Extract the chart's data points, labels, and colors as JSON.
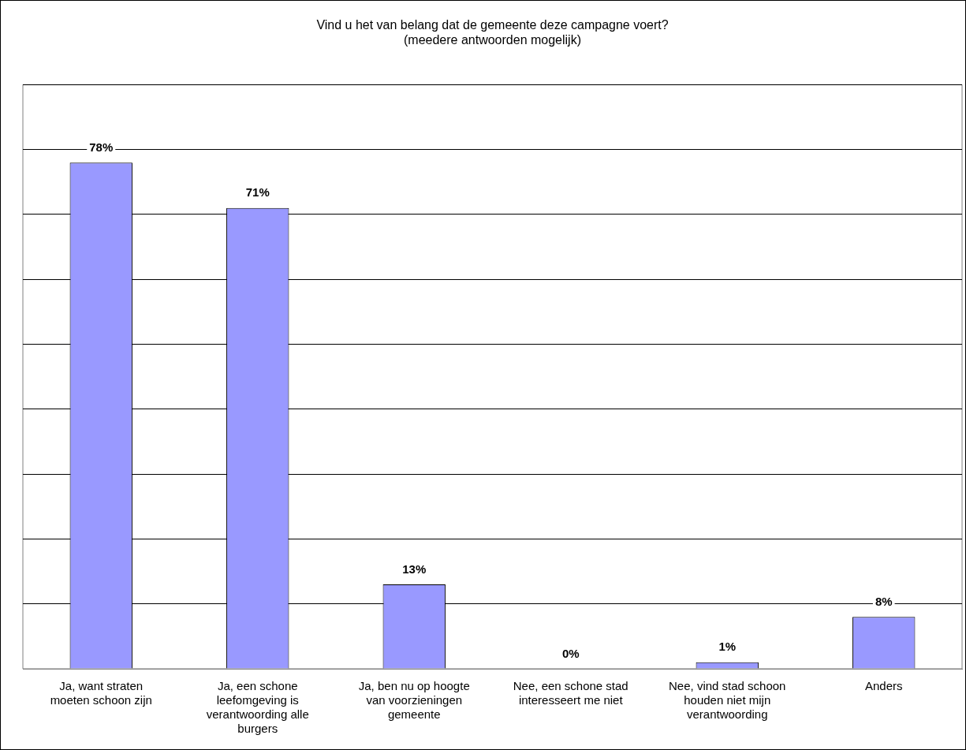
{
  "chart_data": {
    "type": "bar",
    "title": "Vind u het van belang dat de gemeente deze campagne voert?",
    "subtitle": "(meedere antwoorden mogelijk)",
    "categories": [
      "Ja, want straten moeten schoon zijn",
      "Ja, een schone leefomgeving is verantwoording alle burgers",
      "Ja, ben nu op hoogte van voorzieningen gemeente",
      "Nee, een schone stad interesseert me niet",
      "Nee, vind stad schoon houden niet mijn verantwoording",
      "Anders"
    ],
    "values": [
      78,
      71,
      13,
      0,
      1,
      8
    ],
    "color": "#9999ff",
    "value_labels": [
      "78%",
      "71%",
      "13%",
      "0%",
      "1%",
      "8%"
    ],
    "ylim": [
      0,
      90
    ],
    "yticks": [
      {
        "value": 0,
        "label": null
      },
      {
        "value": 10,
        "label": null
      },
      {
        "value": 20,
        "label": null
      },
      {
        "value": 30,
        "label": null
      },
      {
        "value": 40,
        "label": null
      },
      {
        "value": 50,
        "label": null
      },
      {
        "value": 60,
        "label": null
      },
      {
        "value": 70,
        "label": null
      },
      {
        "value": 80,
        "label": null
      },
      {
        "value": 90,
        "label": null
      }
    ],
    "grid": "y",
    "legend": false,
    "tick_labels": "x"
  }
}
